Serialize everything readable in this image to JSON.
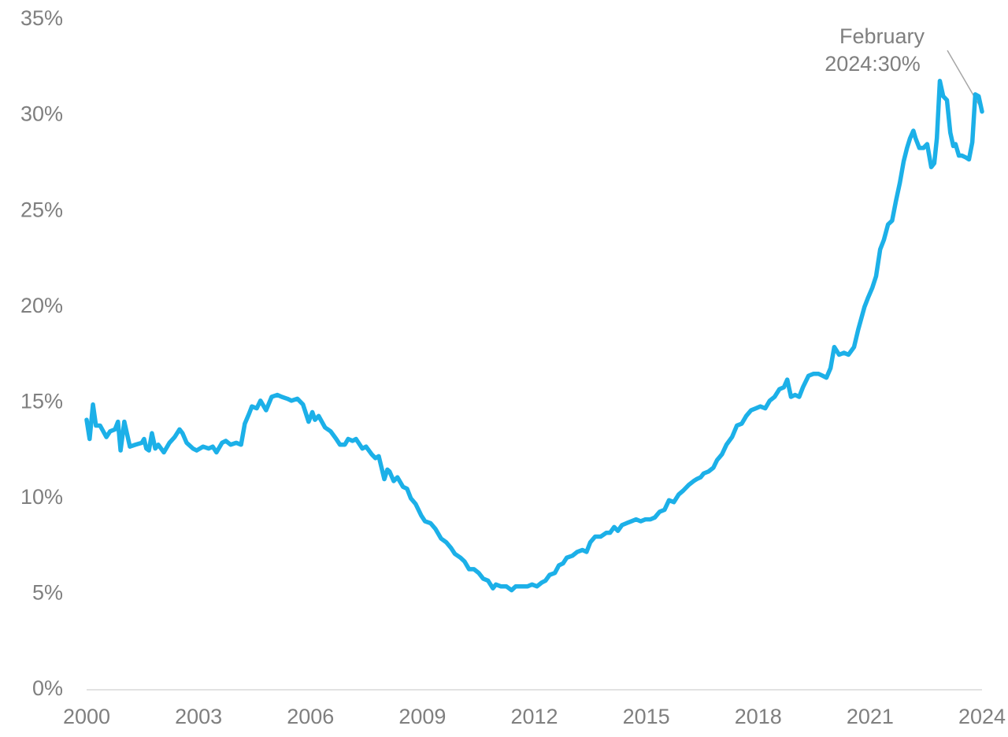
{
  "chart_data": {
    "type": "line",
    "annotation": [
      "February",
      "2024:30%"
    ],
    "x": [
      2000.0,
      2000.08,
      2000.17,
      2000.25,
      2000.36,
      2000.53,
      2000.63,
      2000.76,
      2000.84,
      2000.91,
      2001.01,
      2001.16,
      2001.31,
      2001.48,
      2001.54,
      2001.6,
      2001.67,
      2001.75,
      2001.84,
      2001.92,
      2002.07,
      2002.22,
      2002.36,
      2002.49,
      2002.57,
      2002.68,
      2002.85,
      2002.95,
      2003.12,
      2003.27,
      2003.38,
      2003.48,
      2003.63,
      2003.73,
      2003.86,
      2004.01,
      2004.14,
      2004.24,
      2004.35,
      2004.43,
      2004.56,
      2004.66,
      2004.81,
      2004.96,
      2005.11,
      2005.23,
      2005.38,
      2005.49,
      2005.65,
      2005.8,
      2005.95,
      2006.05,
      2006.12,
      2006.22,
      2006.39,
      2006.54,
      2006.69,
      2006.79,
      2006.92,
      2007.01,
      2007.13,
      2007.22,
      2007.39,
      2007.49,
      2007.64,
      2007.74,
      2007.83,
      2007.98,
      2008.06,
      2008.12,
      2008.23,
      2008.33,
      2008.48,
      2008.59,
      2008.69,
      2008.82,
      2008.97,
      2009.07,
      2009.22,
      2009.35,
      2009.5,
      2009.64,
      2009.77,
      2009.87,
      2010.02,
      2010.13,
      2010.25,
      2010.38,
      2010.51,
      2010.63,
      2010.76,
      2010.89,
      2010.97,
      2011.1,
      2011.25,
      2011.39,
      2011.5,
      2011.65,
      2011.82,
      2011.94,
      2012.07,
      2012.2,
      2012.3,
      2012.41,
      2012.55,
      2012.66,
      2012.77,
      2012.87,
      2013.02,
      2013.15,
      2013.29,
      2013.4,
      2013.5,
      2013.63,
      2013.78,
      2013.93,
      2014.03,
      2014.14,
      2014.24,
      2014.35,
      2014.47,
      2014.6,
      2014.73,
      2014.85,
      2014.98,
      2015.11,
      2015.23,
      2015.36,
      2015.49,
      2015.61,
      2015.74,
      2015.87,
      2015.99,
      2016.14,
      2016.27,
      2016.35,
      2016.46,
      2016.54,
      2016.67,
      2016.8,
      2016.9,
      2017.03,
      2017.15,
      2017.3,
      2017.43,
      2017.56,
      2017.68,
      2017.81,
      2017.94,
      2018.06,
      2018.19,
      2018.31,
      2018.44,
      2018.57,
      2018.69,
      2018.78,
      2018.88,
      2018.99,
      2019.1,
      2019.2,
      2019.35,
      2019.48,
      2019.62,
      2019.73,
      2019.83,
      2019.94,
      2020.04,
      2020.17,
      2020.3,
      2020.42,
      2020.57,
      2020.68,
      2020.85,
      2020.95,
      2021.06,
      2021.16,
      2021.27,
      2021.37,
      2021.48,
      2021.59,
      2021.69,
      2021.8,
      2021.9,
      2021.99,
      2022.07,
      2022.16,
      2022.22,
      2022.32,
      2022.43,
      2022.53,
      2022.64,
      2022.72,
      2022.79,
      2022.87,
      2022.96,
      2023.06,
      2023.15,
      2023.23,
      2023.29,
      2023.38,
      2023.46,
      2023.57,
      2023.65,
      2023.74,
      2023.82,
      2023.91,
      2024.0
    ],
    "series": [
      {
        "color": "#1cb0e8",
        "values": [
          14.1,
          13.1,
          14.9,
          13.8,
          13.8,
          13.2,
          13.5,
          13.6,
          14.0,
          12.5,
          14.0,
          12.7,
          12.8,
          12.9,
          13.1,
          12.6,
          12.5,
          13.4,
          12.6,
          12.8,
          12.4,
          12.9,
          13.2,
          13.6,
          13.4,
          12.9,
          12.6,
          12.5,
          12.7,
          12.6,
          12.7,
          12.4,
          12.9,
          13.0,
          12.8,
          12.9,
          12.8,
          13.9,
          14.4,
          14.8,
          14.7,
          15.1,
          14.6,
          15.3,
          15.4,
          15.3,
          15.2,
          15.1,
          15.2,
          14.9,
          14.0,
          14.5,
          14.1,
          14.3,
          13.7,
          13.5,
          13.1,
          12.8,
          12.8,
          13.1,
          13.0,
          13.1,
          12.6,
          12.7,
          12.3,
          12.1,
          12.2,
          11.0,
          11.5,
          11.4,
          10.9,
          11.1,
          10.6,
          10.5,
          10.0,
          9.7,
          9.1,
          8.8,
          8.7,
          8.4,
          7.9,
          7.7,
          7.4,
          7.1,
          6.9,
          6.7,
          6.3,
          6.3,
          6.1,
          5.8,
          5.7,
          5.3,
          5.5,
          5.4,
          5.4,
          5.2,
          5.4,
          5.4,
          5.4,
          5.5,
          5.4,
          5.6,
          5.7,
          6.0,
          6.1,
          6.5,
          6.6,
          6.9,
          7.0,
          7.2,
          7.3,
          7.2,
          7.7,
          8.0,
          8.0,
          8.2,
          8.2,
          8.5,
          8.3,
          8.6,
          8.7,
          8.8,
          8.9,
          8.8,
          8.9,
          8.9,
          9.0,
          9.3,
          9.4,
          9.9,
          9.8,
          10.2,
          10.4,
          10.7,
          10.9,
          11.0,
          11.1,
          11.3,
          11.4,
          11.6,
          12.0,
          12.3,
          12.8,
          13.2,
          13.8,
          13.9,
          14.3,
          14.6,
          14.7,
          14.8,
          14.7,
          15.1,
          15.3,
          15.7,
          15.8,
          16.2,
          15.3,
          15.4,
          15.3,
          15.8,
          16.4,
          16.5,
          16.5,
          16.4,
          16.3,
          16.8,
          17.9,
          17.5,
          17.6,
          17.5,
          17.9,
          18.8,
          20.0,
          20.5,
          21.0,
          21.6,
          23.0,
          23.5,
          24.3,
          24.5,
          25.5,
          26.5,
          27.6,
          28.3,
          28.8,
          29.2,
          28.8,
          28.3,
          28.3,
          28.5,
          27.3,
          27.5,
          28.8,
          31.8,
          31.0,
          30.8,
          29.1,
          28.4,
          28.5,
          27.9,
          27.9,
          27.8,
          27.7,
          28.6,
          31.1,
          31.0,
          30.2
        ]
      }
    ],
    "xlim": [
      2000,
      2024
    ],
    "xticks": [
      2000,
      2003,
      2006,
      2009,
      2012,
      2015,
      2018,
      2021,
      2024
    ],
    "ylim": [
      0,
      35
    ],
    "yticks": [
      {
        "value": 0,
        "label": "0%"
      },
      {
        "value": 5,
        "label": "5%"
      },
      {
        "value": 10,
        "label": "10%"
      },
      {
        "value": 15,
        "label": "15%"
      },
      {
        "value": 20,
        "label": "20%"
      },
      {
        "value": 25,
        "label": "25%"
      },
      {
        "value": 30,
        "label": "30%"
      },
      {
        "value": 35,
        "label": "35%"
      }
    ],
    "grid": false
  }
}
